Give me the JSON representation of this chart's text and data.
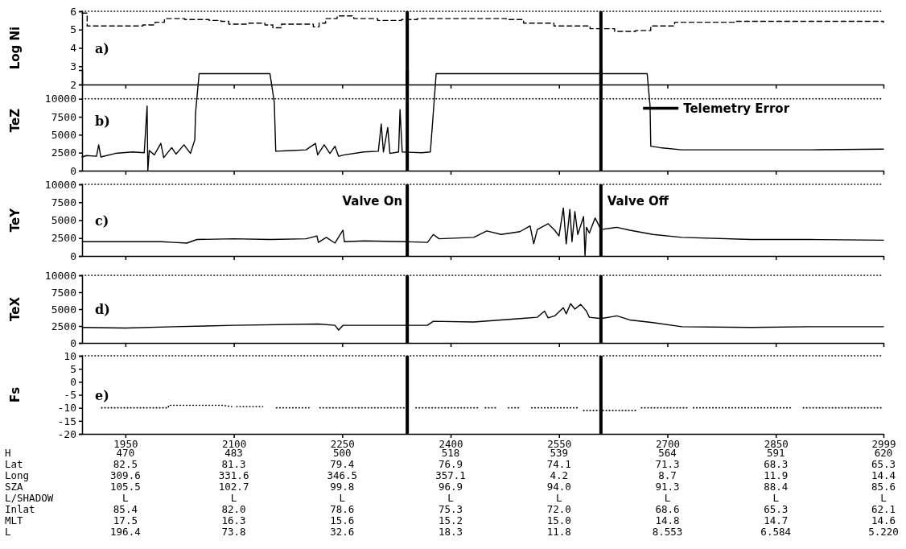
{
  "chart_data": [
    {
      "type": "step",
      "ylabel": "Log Ni",
      "annotations": [
        "a)"
      ],
      "xlim": [
        1890,
        2999
      ],
      "xticks": [
        1950,
        2100,
        2250,
        2400,
        2550,
        2700,
        2850,
        2999
      ],
      "ylim": [
        2,
        6
      ],
      "yticks": [
        2,
        3,
        4,
        5,
        6
      ],
      "tick_labels": "y",
      "line_style": "dashed",
      "x": [
        1890,
        1897,
        1932,
        1974,
        1991,
        2004,
        2032,
        2066,
        2082,
        2093,
        2121,
        2143,
        2154,
        2166,
        2193,
        2210,
        2218,
        2227,
        2243,
        2266,
        2299,
        2332,
        2354,
        2377,
        2418,
        2477,
        2501,
        2543,
        2593,
        2627,
        2656,
        2677,
        2710,
        2793,
        2876,
        2999
      ],
      "series": [
        {
          "color": "#000000",
          "values": [
            5.9,
            5.2,
            5.2,
            5.25,
            5.4,
            5.6,
            5.55,
            5.5,
            5.45,
            5.3,
            5.35,
            5.25,
            5.1,
            5.3,
            5.3,
            5.15,
            5.35,
            5.6,
            5.75,
            5.6,
            5.5,
            5.55,
            5.6,
            5.6,
            5.6,
            5.55,
            5.35,
            5.2,
            5.05,
            4.9,
            4.95,
            5.2,
            5.4,
            5.45,
            5.45,
            5.4
          ]
        }
      ],
      "ref_lines": [
        {
          "axis": "y",
          "value": 6,
          "line_style": "dotted",
          "color": "#000000"
        },
        {
          "axis": "x",
          "value": 2340,
          "color": "#000000"
        },
        {
          "axis": "x",
          "value": 2608,
          "color": "#000000"
        }
      ]
    },
    {
      "type": "line",
      "ylabel": "TeZ",
      "annotations": [
        "b)",
        "Telemetry Error"
      ],
      "xlim": [
        1890,
        2999
      ],
      "xticks": [
        1950,
        2100,
        2250,
        2400,
        2550,
        2700,
        2850,
        2999
      ],
      "ylim": [
        0,
        14000
      ],
      "yticks": [
        0,
        2500,
        5000,
        7500,
        10000
      ],
      "tick_labels": "y",
      "x": [
        1890,
        1896,
        1910,
        1913,
        1916,
        1936,
        1960,
        1976,
        1980,
        1981,
        1983,
        1990,
        1999,
        2003,
        2014,
        2020,
        2031,
        2040,
        2046,
        2047,
        2052,
        2150,
        2156,
        2158,
        2180,
        2200,
        2213,
        2216,
        2225,
        2233,
        2240,
        2245,
        2253,
        2280,
        2300,
        2304,
        2307,
        2313,
        2316,
        2328,
        2330,
        2333,
        2360,
        2372,
        2376,
        2380,
        2672,
        2676,
        2677,
        2690,
        2720,
        2800,
        2900,
        2999
      ],
      "series": [
        {
          "color": "#000000",
          "values": [
            1900,
            2100,
            2000,
            3600,
            1900,
            2400,
            2600,
            2500,
            9000,
            0,
            2800,
            2200,
            3800,
            1800,
            3200,
            2300,
            3600,
            2400,
            4300,
            8000,
            13500,
            13500,
            9500,
            2700,
            2800,
            2900,
            3800,
            2200,
            3600,
            2400,
            3400,
            2000,
            2200,
            2600,
            2700,
            6500,
            2600,
            6000,
            2400,
            2600,
            8500,
            2600,
            2500,
            2600,
            8000,
            13500,
            13500,
            9000,
            3400,
            3200,
            2900,
            2900,
            2900,
            3000
          ]
        }
      ],
      "ref_lines": [
        {
          "axis": "y",
          "value": 10000,
          "line_style": "dotted",
          "color": "#000000"
        },
        {
          "axis": "x",
          "value": 2340,
          "color": "#000000"
        },
        {
          "axis": "x",
          "value": 2608,
          "color": "#000000"
        }
      ]
    },
    {
      "type": "line",
      "ylabel": "TeY",
      "annotations": [
        "c)"
      ],
      "xlim": [
        1890,
        2999
      ],
      "xticks": [
        1950,
        2100,
        2250,
        2400,
        2550,
        2700,
        2850,
        2999
      ],
      "ylim": [
        0,
        10000
      ],
      "yticks": [
        0,
        2500,
        5000,
        7500,
        10000
      ],
      "tick_labels": "y",
      "x": [
        1891,
        1950,
        2000,
        2017,
        2035,
        2049,
        2100,
        2150,
        2200,
        2215,
        2217,
        2228,
        2240,
        2251,
        2253,
        2280,
        2336,
        2368,
        2376,
        2384,
        2432,
        2450,
        2470,
        2496,
        2510,
        2515,
        2520,
        2535,
        2544,
        2550,
        2556,
        2560,
        2565,
        2568,
        2572,
        2576,
        2584,
        2586,
        2588,
        2592,
        2600,
        2608,
        2630,
        2648,
        2680,
        2720,
        2816,
        2896,
        2999
      ],
      "series": [
        {
          "color": "#000000",
          "values": [
            2000,
            2000,
            2000,
            1900,
            1800,
            2300,
            2400,
            2300,
            2400,
            2800,
            1900,
            2600,
            1800,
            3600,
            2000,
            2100,
            2000,
            1900,
            3000,
            2400,
            2600,
            3500,
            3000,
            3400,
            4200,
            1700,
            3700,
            4500,
            3600,
            2800,
            6700,
            1700,
            6500,
            2000,
            6200,
            3000,
            5500,
            0,
            4000,
            3200,
            5300,
            3700,
            4000,
            3600,
            3000,
            2600,
            2300,
            2300,
            2200
          ]
        }
      ],
      "ref_lines": [
        {
          "axis": "y",
          "value": 10000,
          "line_style": "dotted",
          "color": "#000000"
        },
        {
          "axis": "x",
          "value": 2340,
          "label": "Valve On",
          "color": "#000000"
        },
        {
          "axis": "x",
          "value": 2608,
          "label": "Valve Off",
          "color": "#000000"
        }
      ]
    },
    {
      "type": "line",
      "ylabel": "TeX",
      "annotations": [
        "d)"
      ],
      "xlim": [
        1890,
        2999
      ],
      "xticks": [
        1950,
        2100,
        2250,
        2400,
        2550,
        2700,
        2850,
        2999
      ],
      "ylim": [
        0,
        10000
      ],
      "yticks": [
        0,
        2500,
        5000,
        7500,
        10000
      ],
      "tick_labels": "y",
      "x": [
        1891,
        1950,
        2017,
        2100,
        2217,
        2240,
        2245,
        2251,
        2336,
        2368,
        2376,
        2432,
        2496,
        2520,
        2530,
        2535,
        2544,
        2556,
        2560,
        2566,
        2572,
        2580,
        2588,
        2592,
        2608,
        2630,
        2648,
        2680,
        2720,
        2816,
        2896,
        2999
      ],
      "series": [
        {
          "color": "#000000",
          "values": [
            2300,
            2200,
            2400,
            2600,
            2800,
            2600,
            1900,
            2600,
            2600,
            2600,
            3200,
            3100,
            3600,
            3800,
            4700,
            3700,
            4000,
            5200,
            4300,
            5800,
            5000,
            5700,
            4700,
            3800,
            3600,
            4000,
            3400,
            3000,
            2400,
            2300,
            2400,
            2400
          ]
        }
      ],
      "ref_lines": [
        {
          "axis": "y",
          "value": 10000,
          "line_style": "dotted",
          "color": "#000000"
        },
        {
          "axis": "x",
          "value": 2340,
          "color": "#000000"
        },
        {
          "axis": "x",
          "value": 2608,
          "color": "#000000"
        }
      ]
    },
    {
      "type": "line",
      "ylabel": "Fs",
      "annotations": [
        "e)",
        "H",
        "470",
        "483",
        "500",
        "518",
        "539",
        "564",
        "591",
        "620",
        "Lat",
        "82.5",
        "81.3",
        "79.4",
        "76.9",
        "74.1",
        "71.3",
        "68.3",
        "65.3",
        "Long",
        "309.6",
        "331.6",
        "346.5",
        "357.1",
        "4.2",
        "8.7",
        "11.9",
        "14.4",
        "SZA",
        "105.5",
        "102.7",
        "99.8",
        "96.9",
        "94.0",
        "91.3",
        "88.4",
        "85.6",
        "L/SHADOW",
        "L",
        "L",
        "L",
        "L",
        "L",
        "L",
        "L",
        "L",
        "Inlat",
        "85.4",
        "82.0",
        "78.6",
        "75.3",
        "72.0",
        "68.6",
        "65.3",
        "62.1",
        "MLT",
        "17.5",
        "16.3",
        "15.6",
        "15.2",
        "15.0",
        "14.8",
        "14.7",
        "14.6",
        "L",
        "196.4",
        "73.8",
        "32.6",
        "18.3",
        "11.8",
        "8.553",
        "6.584",
        "5.220"
      ],
      "xlim": [
        1890,
        2999
      ],
      "ylim": [
        -20,
        10
      ],
      "yticks": [
        -20,
        -15,
        -10,
        -5,
        0,
        5,
        10
      ],
      "line_style": "dotted",
      "xticks": [
        1950,
        2100,
        2250,
        2400,
        2550,
        2700,
        2850,
        2999
      ],
      "x": [
        1917,
        2009,
        2010,
        2084,
        2097,
        2100,
        2104,
        2140,
        2150,
        2159,
        2204,
        2211,
        2219,
        2336,
        2344,
        2352,
        2440,
        2444,
        2448,
        2464,
        2472,
        2480,
        2496,
        2504,
        2512,
        2576,
        2580,
        2584,
        2656,
        2660,
        2664,
        2728,
        2732,
        2736,
        2872,
        2880,
        2888,
        2996
      ],
      "series": [
        {
          "color": "#000000",
          "values": [
            -10,
            -10,
            -9,
            -9,
            -9.5,
            null,
            -9.5,
            -9.5,
            null,
            -10,
            -10,
            null,
            -10,
            -10,
            null,
            -10,
            -10,
            null,
            -10,
            -10,
            null,
            -10,
            -10,
            null,
            -10,
            -10,
            null,
            -11,
            -11,
            null,
            -10,
            -10,
            null,
            -10,
            -10,
            null,
            -10,
            -10
          ]
        }
      ],
      "ref_lines": [
        {
          "axis": "y",
          "value": 10,
          "line_style": "dotted",
          "color": "#000000"
        },
        {
          "axis": "x",
          "value": 2340,
          "color": "#000000"
        },
        {
          "axis": "x",
          "value": 2608,
          "color": "#000000"
        }
      ]
    }
  ]
}
